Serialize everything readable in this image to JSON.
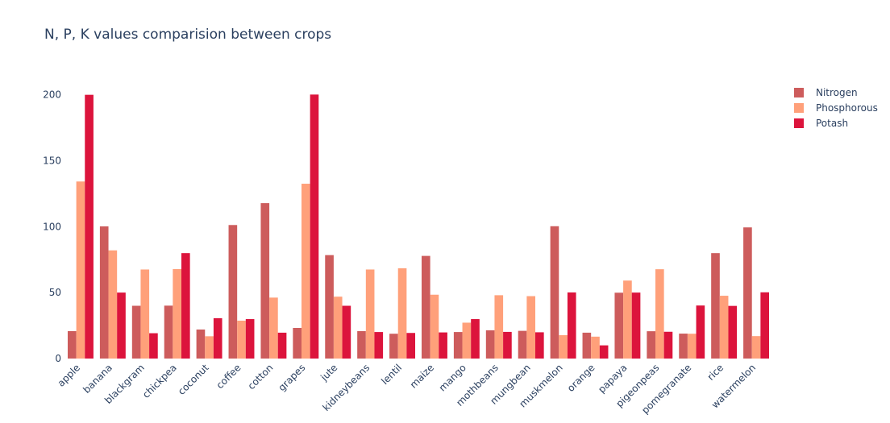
{
  "chart_data": {
    "type": "bar",
    "title": "N, P, K values comparision between crops",
    "categories": [
      "apple",
      "banana",
      "blackgram",
      "chickpea",
      "coconut",
      "coffee",
      "cotton",
      "grapes",
      "jute",
      "kidneybeans",
      "lentil",
      "maize",
      "mango",
      "mothbeans",
      "mungbean",
      "muskmelon",
      "orange",
      "papaya",
      "pigeonpeas",
      "pomegranate",
      "rice",
      "watermelon"
    ],
    "series": [
      {
        "name": "Nitrogen",
        "color": "#cd5c5c",
        "values": [
          20.8,
          100.2,
          40.0,
          40.1,
          22.0,
          101.2,
          117.8,
          23.2,
          78.4,
          20.8,
          18.8,
          77.8,
          20.1,
          21.4,
          21.0,
          100.3,
          19.6,
          49.9,
          20.7,
          18.9,
          79.9,
          99.4
        ]
      },
      {
        "name": "Phosphorous",
        "color": "#ffa07a",
        "values": [
          134.2,
          82.0,
          67.5,
          67.8,
          16.9,
          28.7,
          46.2,
          132.5,
          46.9,
          67.5,
          68.4,
          48.4,
          27.2,
          48.0,
          47.3,
          17.7,
          16.6,
          59.1,
          67.7,
          18.8,
          47.6,
          17.0
        ]
      },
      {
        "name": "Potash",
        "color": "#dc143c",
        "values": [
          199.9,
          50.0,
          19.2,
          79.9,
          30.6,
          29.9,
          19.6,
          200.1,
          40.0,
          20.1,
          19.4,
          19.8,
          29.9,
          20.2,
          19.9,
          50.1,
          10.0,
          50.0,
          20.3,
          40.2,
          39.9,
          50.2
        ]
      }
    ],
    "ylim": [
      0,
      210
    ],
    "yticks": [
      0,
      50,
      100,
      150,
      200
    ],
    "grid": false,
    "legend_position": "top-right"
  }
}
